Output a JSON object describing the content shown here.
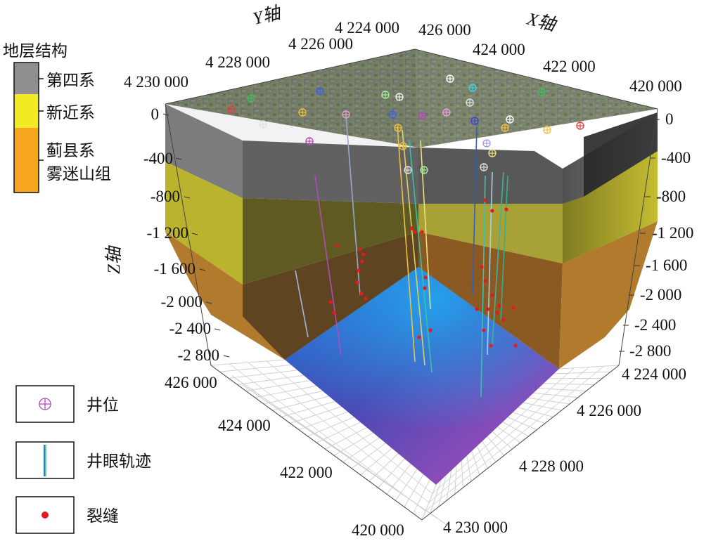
{
  "strata_legend": {
    "title": "地层结构",
    "items": [
      {
        "label": "第四系",
        "color": "#8f8f8f"
      },
      {
        "label": "新近系",
        "color": "#f2ea22"
      },
      {
        "label": "蓟县系",
        "color": "#f5a51e"
      },
      {
        "label": "雾迷山组",
        "color": "#f5a51e"
      }
    ]
  },
  "symbol_legend": [
    {
      "label": "井位",
      "icon": "well-location-icon"
    },
    {
      "label": "井眼轨迹",
      "icon": "well-trajectory-icon"
    },
    {
      "label": "裂缝",
      "icon": "fracture-icon"
    }
  ],
  "axes": {
    "y_axis_label": "Y轴",
    "x_axis_label": "X轴",
    "z_axis_label": "Z轴",
    "y_top_ticks": [
      "4 230 000",
      "4 228 000",
      "4 226 000",
      "4 224 000"
    ],
    "x_top_ticks": [
      "426 000",
      "424 000",
      "422 000",
      "420 000"
    ],
    "z_left_ticks": [
      "0",
      "-400",
      "-800",
      "-1 200",
      "-1 600",
      "-2 000",
      "-2 400",
      "-2 800"
    ],
    "z_right_ticks": [
      "0",
      "-400",
      "-800",
      "-1 200",
      "-1 600",
      "-2 000",
      "-2 400",
      "-2 800"
    ],
    "x_bottom_ticks": [
      "426 000",
      "424 000",
      "422 000",
      "420 000"
    ],
    "y_bottom_ticks": [
      "4 224 000",
      "4 226 000",
      "4 228 000",
      "4 230 000"
    ]
  },
  "colors": {
    "quaternary": "#8f8f8f",
    "neogene": "#f2ea22",
    "jixian": "#f5a51e",
    "fracture": "#e8191e",
    "well_marker": "#b04cb8"
  }
}
